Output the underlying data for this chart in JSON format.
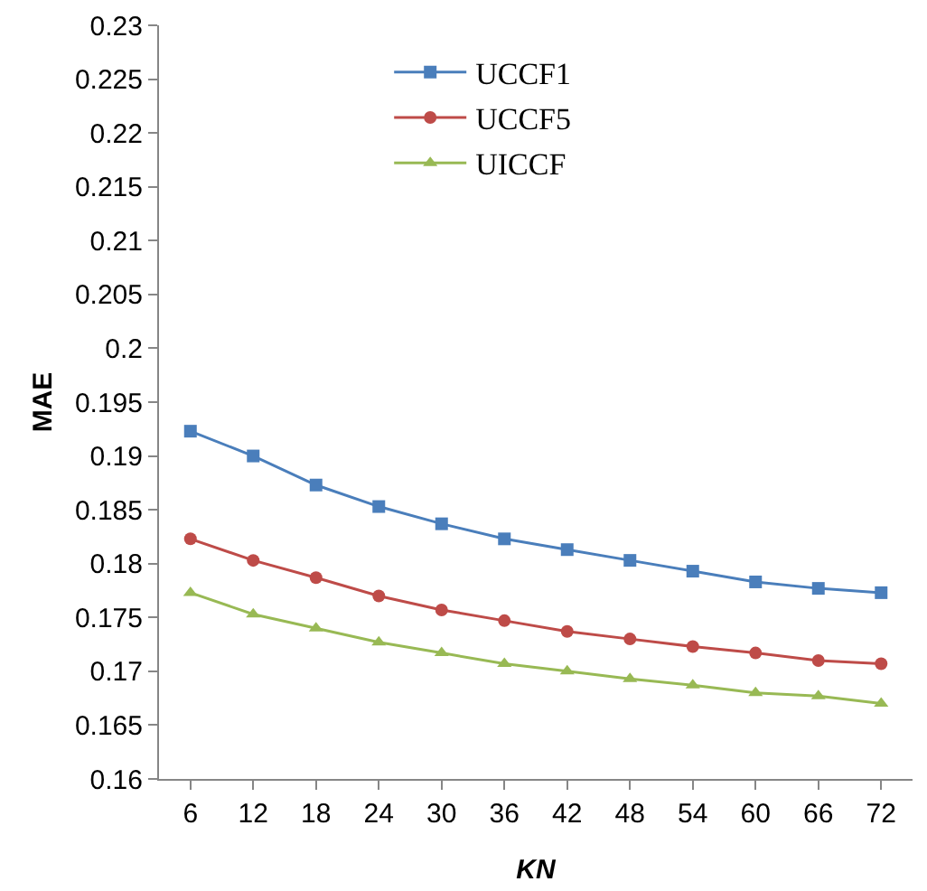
{
  "chart_data": {
    "type": "line",
    "xlabel": "KN",
    "ylabel": "MAE",
    "categories": [
      "6",
      "12",
      "18",
      "24",
      "30",
      "36",
      "42",
      "48",
      "54",
      "60",
      "66",
      "72"
    ],
    "series": [
      {
        "name": "UCCF1",
        "color": "#4a7ebb",
        "marker": "square",
        "values": [
          0.1923,
          0.19,
          0.1873,
          0.1853,
          0.1837,
          0.1823,
          0.1813,
          0.1803,
          0.1793,
          0.1783,
          0.1777,
          0.1773
        ]
      },
      {
        "name": "UCCF5",
        "color": "#be4b48",
        "marker": "circle",
        "values": [
          0.1823,
          0.1803,
          0.1787,
          0.177,
          0.1757,
          0.1747,
          0.1737,
          0.173,
          0.1723,
          0.1717,
          0.171,
          0.1707
        ]
      },
      {
        "name": "UICCF",
        "color": "#98b954",
        "marker": "triangle",
        "values": [
          0.1773,
          0.1753,
          0.174,
          0.1727,
          0.1717,
          0.1707,
          0.17,
          0.1693,
          0.1687,
          0.168,
          0.1677,
          0.167
        ]
      }
    ],
    "ylim": [
      0.16,
      0.23
    ],
    "yticks": [
      0.16,
      0.165,
      0.17,
      0.175,
      0.18,
      0.185,
      0.19,
      0.195,
      0.2,
      0.205,
      0.21,
      0.215,
      0.22,
      0.225,
      0.23
    ],
    "grid": false,
    "legend": "top",
    "line_style": "solid"
  }
}
